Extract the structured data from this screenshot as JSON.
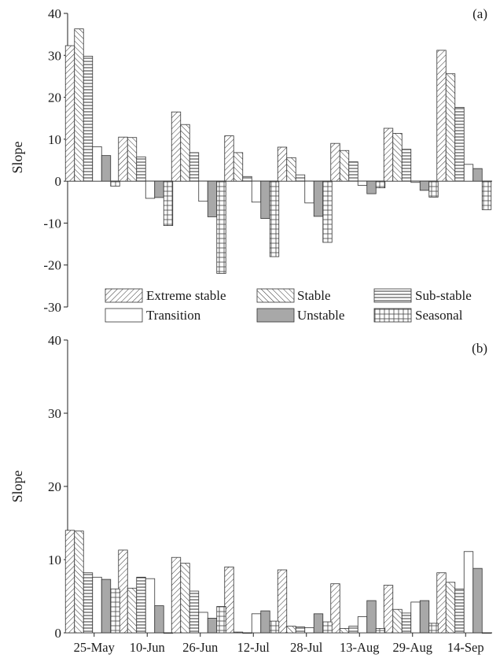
{
  "chart_data": {
    "type": "bar",
    "categories": [
      "25-May",
      "10-Jun",
      "26-Jun",
      "12-Jul",
      "28-Jul",
      "13-Aug",
      "29-Aug",
      "14-Sep"
    ],
    "series_names": [
      "Extreme stable",
      "Stable",
      "Sub-stable",
      "Transition",
      "Unstable",
      "Seasonal"
    ],
    "patterns": [
      "diag-right",
      "diag-left",
      "horizontal",
      "none",
      "solid-grey",
      "grid"
    ],
    "legend_placement": "between panels",
    "panels": [
      {
        "label": "(a)",
        "ylabel": "Slope",
        "ylim": [
          -30,
          40
        ],
        "yticks": [
          -30,
          -20,
          -10,
          0,
          10,
          20,
          30,
          40
        ],
        "series": [
          {
            "name": "Extreme stable",
            "values": [
              32.3,
              10.5,
              16.5,
              10.8,
              8.1,
              9.0,
              12.6,
              31.2
            ]
          },
          {
            "name": "Stable",
            "values": [
              36.3,
              10.4,
              13.5,
              6.8,
              5.6,
              7.3,
              11.4,
              25.6
            ]
          },
          {
            "name": "Sub-stable",
            "values": [
              29.8,
              5.8,
              6.8,
              1.1,
              1.5,
              4.6,
              7.6,
              17.6
            ]
          },
          {
            "name": "Transition",
            "values": [
              8.2,
              -4.1,
              -4.8,
              -5.0,
              -5.2,
              -1.0,
              -0.3,
              4.0
            ]
          },
          {
            "name": "Unstable",
            "values": [
              6.1,
              -3.9,
              -8.5,
              -8.9,
              -8.4,
              -3.0,
              -2.2,
              3.0
            ]
          },
          {
            "name": "Seasonal",
            "values": [
              -1.2,
              -10.6,
              -22.0,
              -18.0,
              -14.6,
              -1.6,
              -3.8,
              -6.8
            ]
          }
        ]
      },
      {
        "label": "(b)",
        "ylabel": "Slope",
        "ylim": [
          0,
          40
        ],
        "yticks": [
          0,
          10,
          20,
          30,
          40
        ],
        "series": [
          {
            "name": "Extreme stable",
            "values": [
              14.0,
              11.3,
              10.3,
              9.0,
              8.6,
              6.7,
              6.5,
              8.2
            ]
          },
          {
            "name": "Stable",
            "values": [
              13.9,
              6.1,
              9.5,
              0.1,
              0.9,
              0.6,
              3.2,
              6.9
            ]
          },
          {
            "name": "Sub-stable",
            "values": [
              8.2,
              7.6,
              5.7,
              0.0,
              0.8,
              0.9,
              2.7,
              6.0
            ]
          },
          {
            "name": "Transition",
            "values": [
              7.6,
              7.4,
              2.8,
              2.6,
              0.7,
              2.2,
              4.2,
              11.1
            ]
          },
          {
            "name": "Unstable",
            "values": [
              7.3,
              3.7,
              2.0,
              3.0,
              2.6,
              4.4,
              4.4,
              8.8
            ]
          },
          {
            "name": "Seasonal",
            "values": [
              6.0,
              0.0,
              3.6,
              1.6,
              1.5,
              0.6,
              1.3,
              0.0
            ]
          }
        ]
      }
    ]
  }
}
